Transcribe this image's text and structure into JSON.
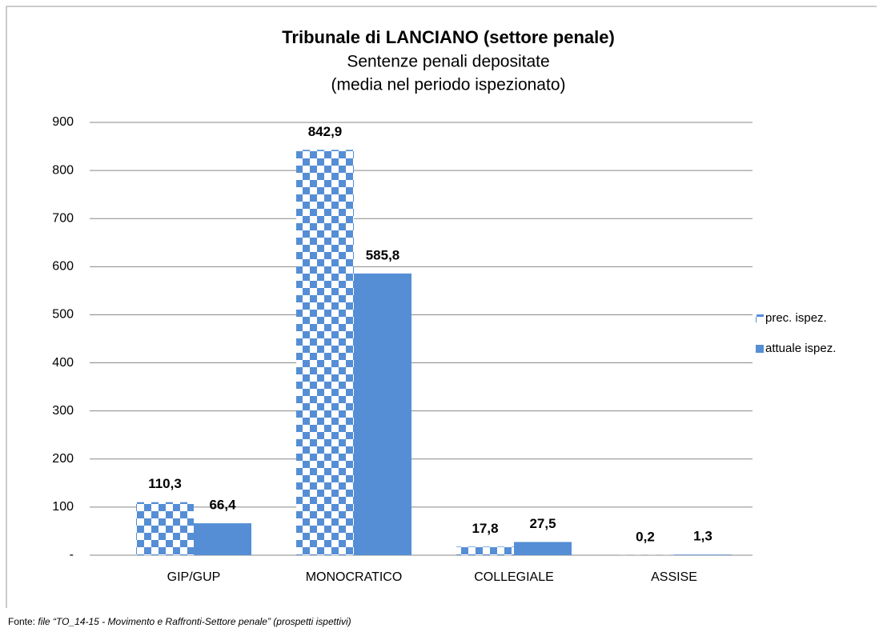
{
  "chart_data": {
    "type": "bar",
    "title": "Tribunale di LANCIANO (settore penale)",
    "subtitle": [
      "Sentenze penali depositate",
      "(media nel periodo ispezionato)"
    ],
    "categories": [
      "GIP/GUP",
      "MONOCRATICO",
      "COLLEGIALE",
      "ASSISE"
    ],
    "series": [
      {
        "name": "prec. ispez.",
        "color": "#558ed5",
        "pattern": "checkerboard",
        "values": [
          110.3,
          842.9,
          17.8,
          0.2
        ],
        "value_labels": [
          "110,3",
          "842,9",
          "17,8",
          "0,2"
        ]
      },
      {
        "name": "attuale ispez.",
        "color": "#558ed5",
        "values": [
          66.4,
          585.8,
          27.5,
          1.3
        ],
        "value_labels": [
          "66,4",
          "585,8",
          "27,5",
          "1,3"
        ]
      }
    ],
    "ylim": [
      0,
      900
    ],
    "yticks": [
      {
        "value": 0,
        "label": "-"
      },
      100,
      200,
      300,
      400,
      500,
      600,
      700,
      800,
      900
    ],
    "grid": true,
    "legend": "right",
    "source_label": "Fonte:",
    "source": "file “TO_14-15 - Movimento e Raffronti-Settore penale” (prospetti ispettivi)"
  }
}
